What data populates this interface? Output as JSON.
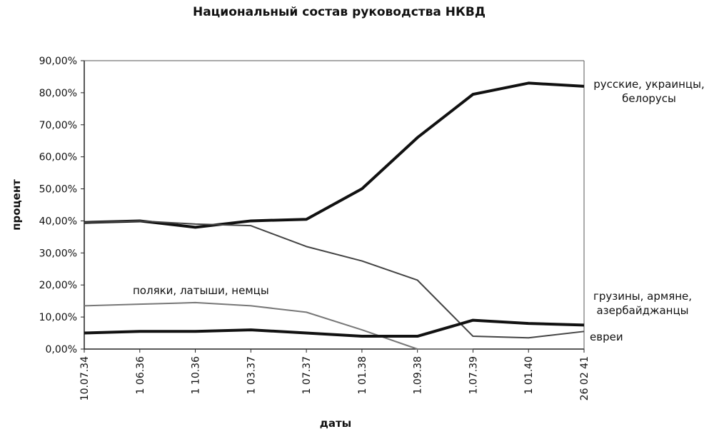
{
  "chart_data": {
    "type": "line",
    "title": "Национальный состав руководства НКВД",
    "x_label": "даты",
    "y_label": "процент",
    "categories": [
      "10.07.34",
      "1 06.36",
      "1 10.36",
      "1 03.37",
      "1 07.37",
      "1 01.38",
      "1.09.38",
      "1.07.39",
      "1 01.40",
      "26 02 41"
    ],
    "ylim": [
      0,
      90
    ],
    "yticks": [
      {
        "value": 0,
        "label": "0,00%"
      },
      {
        "value": 10,
        "label": "10,00%"
      },
      {
        "value": 20,
        "label": "20,00%"
      },
      {
        "value": 30,
        "label": "30,00%"
      },
      {
        "value": 40,
        "label": "40,00%"
      },
      {
        "value": 50,
        "label": "50,00%"
      },
      {
        "value": 60,
        "label": "60,00%"
      },
      {
        "value": 70,
        "label": "70,00%"
      },
      {
        "value": 80,
        "label": "80,00%"
      },
      {
        "value": 90,
        "label": "90,00%"
      }
    ],
    "series": [
      {
        "name": "русские, украинцы, белорусы",
        "color": "#111111",
        "width": 4,
        "values": [
          39.5,
          40,
          38,
          40,
          40.5,
          50,
          66,
          79.5,
          83,
          82
        ]
      },
      {
        "name": "евреи",
        "color": "#444444",
        "width": 2,
        "values": [
          39.5,
          40,
          39,
          38.5,
          32,
          27.5,
          21.5,
          4,
          3.5,
          5.5
        ]
      },
      {
        "name": "поляки, латыши, немцы",
        "color": "#777777",
        "width": 2,
        "values": [
          13.5,
          14,
          14.5,
          13.5,
          11.5,
          6,
          0,
          0,
          null,
          null
        ]
      },
      {
        "name": "грузины, армяне, азербайджанцы",
        "color": "#111111",
        "width": 4,
        "values": [
          5,
          5.5,
          5.5,
          6,
          5,
          4,
          4,
          9,
          8,
          7.5
        ]
      }
    ]
  }
}
